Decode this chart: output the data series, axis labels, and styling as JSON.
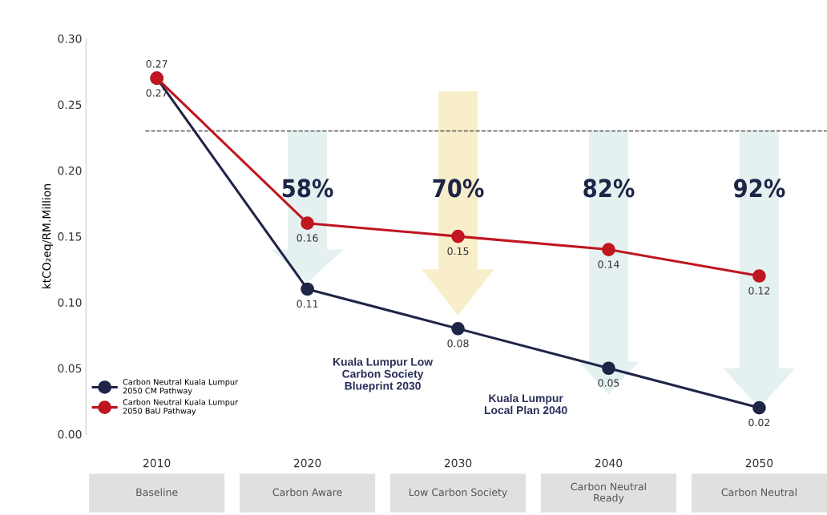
{
  "chart_data": {
    "type": "line",
    "ylabel": "ktCO₂eq/RM.Million",
    "categories": [
      "2010",
      "2020",
      "2030",
      "2040",
      "2050"
    ],
    "series": [
      {
        "name": "Carbon Neutral Kuala Lumpur\n2050 CM Pathway",
        "color": "#1f2547",
        "values": [
          0.27,
          0.11,
          0.08,
          0.05,
          0.02
        ]
      },
      {
        "name": "Carbon Neutral Kuala Lumpur\n2050 BaU Pathway",
        "color": "#c0161f",
        "values": [
          0.27,
          0.16,
          0.15,
          0.14,
          0.12
        ]
      }
    ],
    "ylim": [
      0,
      0.3
    ],
    "yticks": [
      {
        "value": 0,
        "label": "0.00"
      },
      {
        "value": 0.05,
        "label": "0.05"
      },
      {
        "value": 0.1,
        "label": "0.10"
      },
      {
        "value": 0.15,
        "label": "0.15"
      },
      {
        "value": 0.2,
        "label": "0.20"
      },
      {
        "value": 0.25,
        "label": "0.25"
      },
      {
        "value": 0.3,
        "label": "0.30"
      }
    ],
    "ref_lines": [
      {
        "axis": "y",
        "value": 0.23,
        "color": "#555555",
        "line_style": "dashed"
      }
    ],
    "data_labels": true,
    "marker": "circle",
    "line_style": "solid",
    "grid": false,
    "legend": "bottom left",
    "annotations": [
      "58%",
      "70%",
      "82%",
      "92%",
      "Kuala Lumpur Low\nCarbon Society\nBlueprint 2030",
      "Kuala Lumpur\nLocal Plan 2040",
      "Baseline",
      "Carbon Aware",
      "Low Carbon Society",
      "Carbon Neutral\nReady",
      "Carbon Neutral"
    ]
  }
}
